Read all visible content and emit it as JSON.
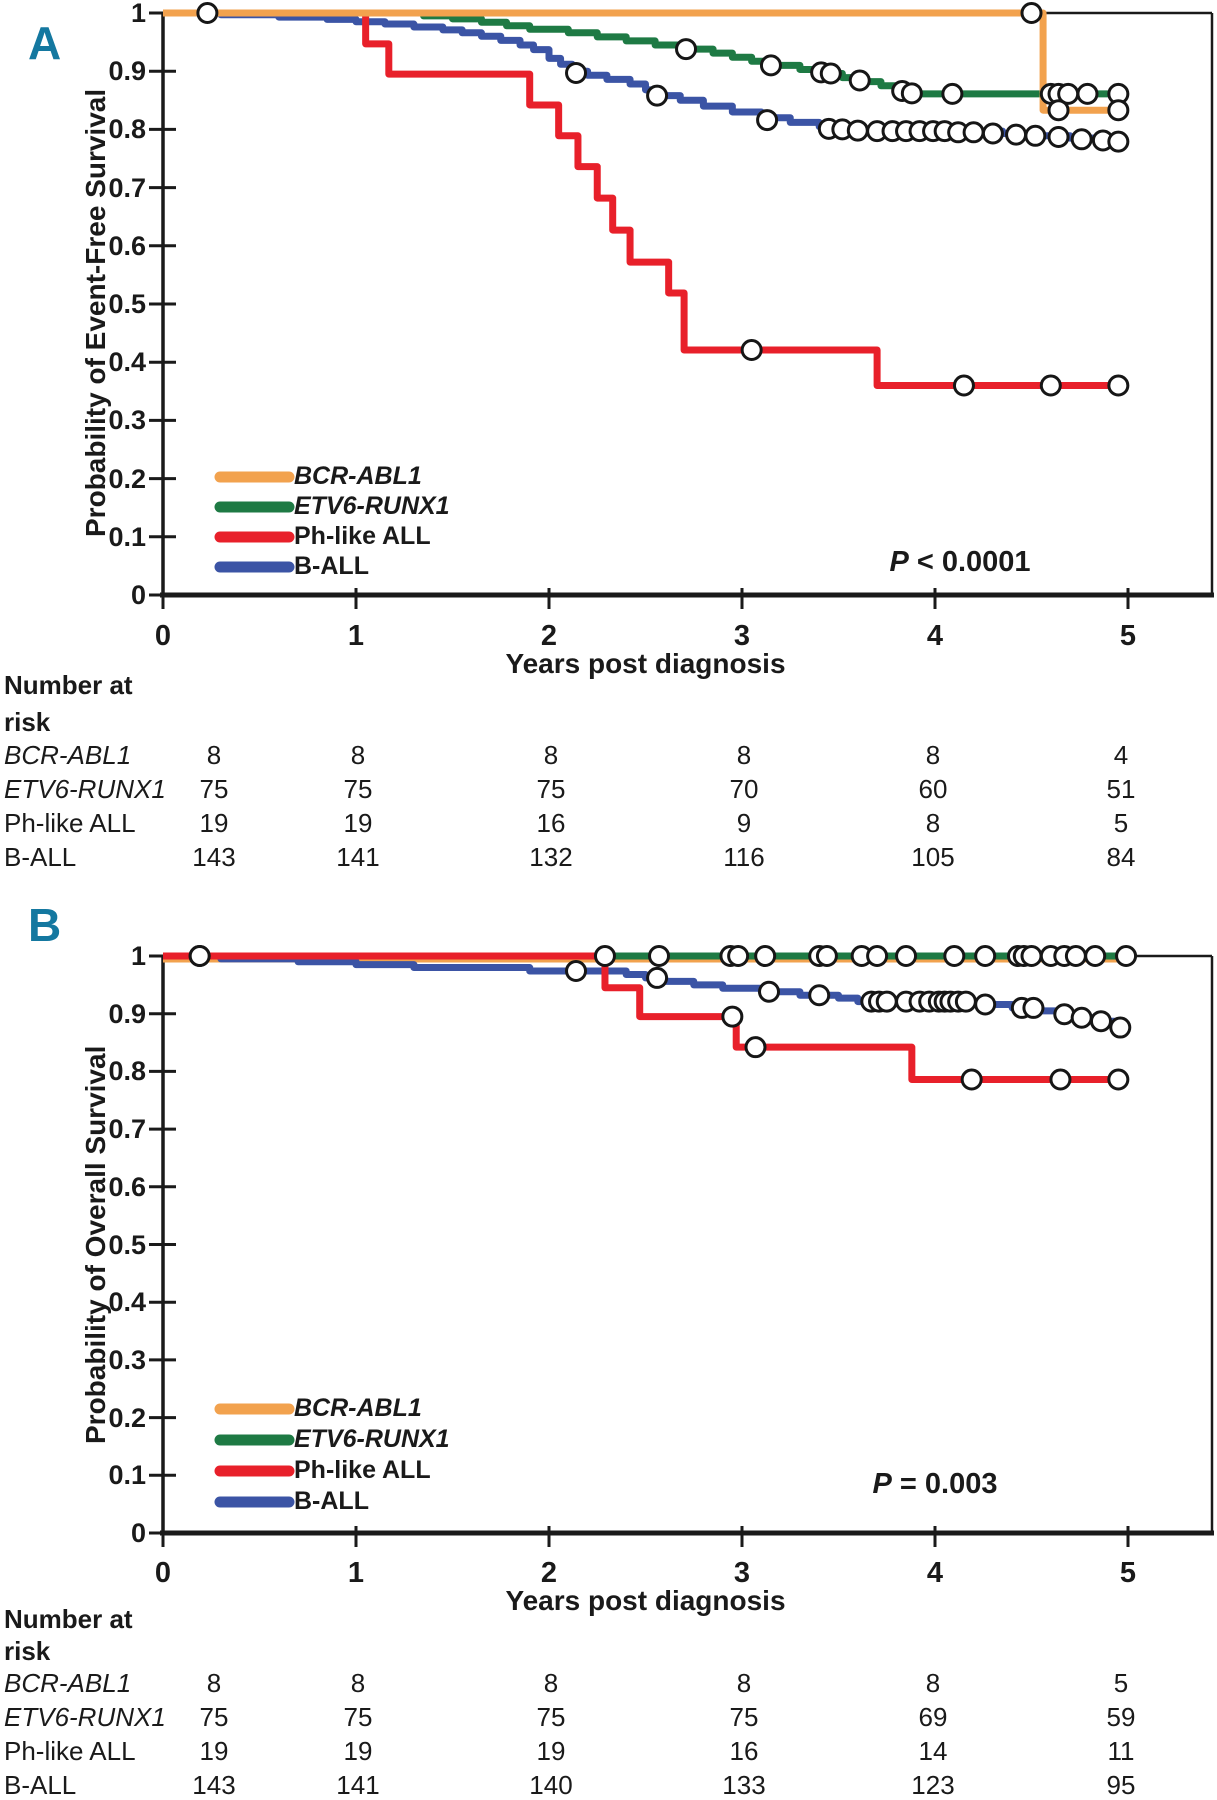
{
  "colors": {
    "bcr_abl1": "#F2A24E",
    "etv6_runx1": "#1E7A44",
    "ph_like_all": "#E8202A",
    "b_all": "#3B54A5",
    "panel_letter": "#1478A0",
    "axis": "#1a1a1a",
    "censor_fill": "#ffffff",
    "censor_stroke": "#161616"
  },
  "panels": [
    {
      "letter": "A",
      "y_title": "Probability of Event-Free Survival",
      "x_title": "Years post diagnosis",
      "p_italic": "P",
      "p_text": " < 0.0001",
      "y_ticks": [
        "1",
        "0.9",
        "0.8",
        "0.7",
        "0.6",
        "0.5",
        "0.4",
        "0.3",
        "0.2",
        "0.1",
        "0"
      ],
      "x_ticks": [
        "0",
        "1",
        "2",
        "3",
        "4",
        "5"
      ],
      "legend": [
        {
          "label": "BCR-ABL1",
          "color": "#F2A24E",
          "italic": true
        },
        {
          "label": "ETV6-RUNX1",
          "color": "#1E7A44",
          "italic": true
        },
        {
          "label": "Ph-like ALL",
          "color": "#E8202A",
          "italic": false
        },
        {
          "label": "B-ALL",
          "color": "#3B54A5",
          "italic": false
        }
      ],
      "risk_header_1": "Number at",
      "risk_header_2": "risk",
      "risk_rows": [
        {
          "label": "BCR-ABL1",
          "italic": true,
          "values": [
            "8",
            "8",
            "8",
            "8",
            "8",
            "4"
          ]
        },
        {
          "label": "ETV6-RUNX1",
          "italic": true,
          "values": [
            "75",
            "75",
            "75",
            "70",
            "60",
            "51"
          ]
        },
        {
          "label": "Ph-like ALL",
          "italic": false,
          "values": [
            "19",
            "19",
            "16",
            "9",
            "8",
            "5"
          ]
        },
        {
          "label": "B-ALL",
          "italic": false,
          "values": [
            "143",
            "141",
            "132",
            "116",
            "105",
            "84"
          ]
        }
      ]
    },
    {
      "letter": "B",
      "y_title": "Probability of Overall Survival",
      "x_title": "Years post diagnosis",
      "p_italic": "P",
      "p_text": " = 0.003",
      "y_ticks": [
        "1",
        "0.9",
        "0.8",
        "0.7",
        "0.6",
        "0.5",
        "0.4",
        "0.3",
        "0.2",
        "0.1",
        "0"
      ],
      "x_ticks": [
        "0",
        "1",
        "2",
        "3",
        "4",
        "5"
      ],
      "legend": [
        {
          "label": "BCR-ABL1",
          "color": "#F2A24E",
          "italic": true
        },
        {
          "label": "ETV6-RUNX1",
          "color": "#1E7A44",
          "italic": true
        },
        {
          "label": "Ph-like ALL",
          "color": "#E8202A",
          "italic": false
        },
        {
          "label": "B-ALL",
          "color": "#3B54A5",
          "italic": false
        }
      ],
      "risk_header_1": "Number at",
      "risk_header_2": "risk",
      "risk_rows": [
        {
          "label": "BCR-ABL1",
          "italic": true,
          "values": [
            "8",
            "8",
            "8",
            "8",
            "8",
            "5"
          ]
        },
        {
          "label": "ETV6-RUNX1",
          "italic": true,
          "values": [
            "75",
            "75",
            "75",
            "75",
            "69",
            "59"
          ]
        },
        {
          "label": "Ph-like ALL",
          "italic": false,
          "values": [
            "19",
            "19",
            "19",
            "16",
            "14",
            "11"
          ]
        },
        {
          "label": "B-ALL",
          "italic": false,
          "values": [
            "143",
            "141",
            "140",
            "133",
            "123",
            "95"
          ]
        }
      ]
    }
  ],
  "chart_data": [
    {
      "type": "line",
      "subtype": "kaplan-meier-step",
      "title": "Event-Free Survival by genetic subgroup",
      "xlabel": "Years post diagnosis",
      "ylabel": "Probability of Event-Free Survival",
      "xlim": [
        0,
        5
      ],
      "ylim": [
        0,
        1
      ],
      "legend_position": "lower-left",
      "grid": false,
      "p_value": "P < 0.0001",
      "series": [
        {
          "name": "B-ALL",
          "color": "#3B54A5",
          "steps": [
            [
              0,
              1
            ],
            [
              0.3,
              0.997
            ],
            [
              0.6,
              0.993
            ],
            [
              0.85,
              0.989
            ],
            [
              1,
              0.985
            ],
            [
              1.15,
              0.981
            ],
            [
              1.3,
              0.976
            ],
            [
              1.45,
              0.971
            ],
            [
              1.55,
              0.966
            ],
            [
              1.65,
              0.96
            ],
            [
              1.75,
              0.953
            ],
            [
              1.85,
              0.945
            ],
            [
              1.92,
              0.937
            ],
            [
              2,
              0.922
            ],
            [
              2.06,
              0.912
            ],
            [
              2.12,
              0.9
            ],
            [
              2.2,
              0.893
            ],
            [
              2.3,
              0.886
            ],
            [
              2.42,
              0.878
            ],
            [
              2.5,
              0.868
            ],
            [
              2.58,
              0.858
            ],
            [
              2.68,
              0.85
            ],
            [
              2.8,
              0.84
            ],
            [
              2.95,
              0.83
            ],
            [
              3.1,
              0.82
            ],
            [
              3.25,
              0.812
            ],
            [
              3.4,
              0.805
            ],
            [
              3.55,
              0.8
            ],
            [
              3.7,
              0.797
            ],
            [
              4.35,
              0.793
            ],
            [
              4.55,
              0.789
            ],
            [
              4.7,
              0.785
            ],
            [
              4.85,
              0.781
            ],
            [
              4.97,
              0.777
            ]
          ],
          "censors": [
            [
              2.14,
              0.897
            ],
            [
              2.56,
              0.858
            ],
            [
              3.13,
              0.816
            ],
            [
              3.45,
              0.801
            ],
            [
              3.52,
              0.8
            ],
            [
              3.6,
              0.798
            ],
            [
              3.7,
              0.797
            ],
            [
              3.78,
              0.797
            ],
            [
              3.85,
              0.797
            ],
            [
              3.92,
              0.797
            ],
            [
              3.99,
              0.797
            ],
            [
              4.05,
              0.797
            ],
            [
              4.12,
              0.795
            ],
            [
              4.2,
              0.795
            ],
            [
              4.3,
              0.793
            ],
            [
              4.42,
              0.791
            ],
            [
              4.52,
              0.789
            ],
            [
              4.64,
              0.787
            ],
            [
              4.76,
              0.783
            ],
            [
              4.87,
              0.781
            ],
            [
              4.95,
              0.779
            ]
          ]
        },
        {
          "name": "ETV6-RUNX1",
          "color": "#1E7A44",
          "steps": [
            [
              0,
              1
            ],
            [
              1.35,
              0.995
            ],
            [
              1.5,
              0.99
            ],
            [
              1.65,
              0.984
            ],
            [
              1.78,
              0.978
            ],
            [
              1.9,
              0.972
            ],
            [
              2.1,
              0.966
            ],
            [
              2.25,
              0.959
            ],
            [
              2.4,
              0.952
            ],
            [
              2.55,
              0.945
            ],
            [
              2.7,
              0.938
            ],
            [
              2.85,
              0.931
            ],
            [
              2.95,
              0.924
            ],
            [
              3.05,
              0.917
            ],
            [
              3.15,
              0.91
            ],
            [
              3.3,
              0.903
            ],
            [
              3.42,
              0.896
            ],
            [
              3.52,
              0.889
            ],
            [
              3.62,
              0.882
            ],
            [
              3.72,
              0.875
            ],
            [
              3.8,
              0.868
            ],
            [
              3.88,
              0.861
            ],
            [
              4.97,
              0.861
            ]
          ],
          "censors": [
            [
              2.71,
              0.938
            ],
            [
              3.15,
              0.91
            ],
            [
              3.41,
              0.898
            ],
            [
              3.46,
              0.896
            ],
            [
              3.61,
              0.884
            ],
            [
              3.83,
              0.866
            ],
            [
              3.88,
              0.862
            ],
            [
              4.09,
              0.861
            ],
            [
              4.6,
              0.861
            ],
            [
              4.64,
              0.861
            ],
            [
              4.69,
              0.861
            ],
            [
              4.79,
              0.861
            ],
            [
              4.95,
              0.861
            ]
          ]
        },
        {
          "name": "Ph-like ALL",
          "color": "#E8202A",
          "steps": [
            [
              0,
              1
            ],
            [
              1.05,
              0.947
            ],
            [
              1.17,
              0.895
            ],
            [
              1.9,
              0.842
            ],
            [
              2.05,
              0.789
            ],
            [
              2.15,
              0.736
            ],
            [
              2.25,
              0.682
            ],
            [
              2.33,
              0.627
            ],
            [
              2.42,
              0.572
            ],
            [
              2.62,
              0.519
            ],
            [
              2.7,
              0.421
            ],
            [
              3.7,
              0.36
            ],
            [
              4.97,
              0.36
            ]
          ],
          "censors": [
            [
              3.05,
              0.421
            ],
            [
              4.15,
              0.36
            ],
            [
              4.6,
              0.36
            ],
            [
              4.95,
              0.36
            ]
          ]
        },
        {
          "name": "BCR-ABL1",
          "color": "#F2A24E",
          "steps": [
            [
              0,
              1
            ],
            [
              4.56,
              0.833
            ],
            [
              4.97,
              0.833
            ]
          ],
          "censors": [
            [
              0.23,
              1
            ],
            [
              4.5,
              1
            ],
            [
              4.64,
              0.833
            ],
            [
              4.95,
              0.833
            ]
          ]
        }
      ]
    },
    {
      "type": "line",
      "subtype": "kaplan-meier-step",
      "title": "Overall Survival by genetic subgroup",
      "xlabel": "Years post diagnosis",
      "ylabel": "Probability of Overall Survival",
      "xlim": [
        0,
        5
      ],
      "ylim": [
        0,
        1
      ],
      "legend_position": "lower-left",
      "grid": false,
      "p_value": "P = 0.003",
      "series": [
        {
          "name": "BCR-ABL1",
          "color": "#F2A24E",
          "dy": 3,
          "steps": [
            [
              0,
              1
            ],
            [
              4.97,
              1
            ]
          ],
          "censors": []
        },
        {
          "name": "ETV6-RUNX1",
          "color": "#1E7A44",
          "steps": [
            [
              0,
              1
            ],
            [
              4.97,
              1
            ]
          ],
          "censors": [
            [
              0.19,
              1
            ],
            [
              2.29,
              1
            ],
            [
              2.57,
              1
            ],
            [
              2.94,
              1
            ],
            [
              2.98,
              1
            ],
            [
              3.12,
              1
            ],
            [
              3.4,
              1
            ],
            [
              3.44,
              1
            ],
            [
              3.62,
              1
            ],
            [
              3.7,
              1
            ],
            [
              3.85,
              1
            ],
            [
              4.1,
              1
            ],
            [
              4.26,
              1
            ],
            [
              4.43,
              1
            ],
            [
              4.46,
              1
            ],
            [
              4.5,
              1
            ],
            [
              4.6,
              1
            ],
            [
              4.67,
              1
            ],
            [
              4.73,
              1
            ],
            [
              4.83,
              1
            ],
            [
              4.99,
              1
            ]
          ]
        },
        {
          "name": "B-ALL",
          "color": "#3B54A5",
          "steps": [
            [
              0,
              1
            ],
            [
              0.3,
              0.995
            ],
            [
              0.7,
              0.99
            ],
            [
              1,
              0.985
            ],
            [
              1.3,
              0.98
            ],
            [
              1.9,
              0.974
            ],
            [
              2.4,
              0.968
            ],
            [
              2.5,
              0.962
            ],
            [
              2.6,
              0.956
            ],
            [
              2.75,
              0.95
            ],
            [
              2.9,
              0.944
            ],
            [
              3.1,
              0.938
            ],
            [
              3.3,
              0.932
            ],
            [
              3.5,
              0.927
            ],
            [
              3.6,
              0.921
            ],
            [
              4.2,
              0.916
            ],
            [
              4.4,
              0.91
            ],
            [
              4.55,
              0.905
            ],
            [
              4.65,
              0.899
            ],
            [
              4.75,
              0.893
            ],
            [
              4.85,
              0.887
            ],
            [
              4.93,
              0.881
            ],
            [
              4.97,
              0.875
            ]
          ],
          "censors": [
            [
              2.14,
              0.974
            ],
            [
              2.56,
              0.962
            ],
            [
              3.14,
              0.938
            ],
            [
              3.4,
              0.932
            ],
            [
              3.67,
              0.921
            ],
            [
              3.71,
              0.921
            ],
            [
              3.75,
              0.921
            ],
            [
              3.85,
              0.921
            ],
            [
              3.92,
              0.921
            ],
            [
              3.97,
              0.921
            ],
            [
              4.02,
              0.921
            ],
            [
              4.05,
              0.921
            ],
            [
              4.08,
              0.921
            ],
            [
              4.12,
              0.921
            ],
            [
              4.16,
              0.921
            ],
            [
              4.26,
              0.916
            ],
            [
              4.45,
              0.91
            ],
            [
              4.51,
              0.91
            ],
            [
              4.67,
              0.899
            ],
            [
              4.76,
              0.893
            ],
            [
              4.86,
              0.887
            ],
            [
              4.96,
              0.876
            ]
          ]
        },
        {
          "name": "Ph-like ALL",
          "color": "#E8202A",
          "steps": [
            [
              0,
              1
            ],
            [
              2.29,
              0.945
            ],
            [
              2.47,
              0.895
            ],
            [
              2.97,
              0.842
            ],
            [
              3.88,
              0.786
            ],
            [
              4.97,
              0.786
            ]
          ],
          "censors": [
            [
              0.19,
              1
            ],
            [
              2.95,
              0.895
            ],
            [
              3.07,
              0.842
            ],
            [
              4.19,
              0.786
            ],
            [
              4.65,
              0.786
            ],
            [
              4.95,
              0.786
            ]
          ]
        }
      ]
    }
  ]
}
